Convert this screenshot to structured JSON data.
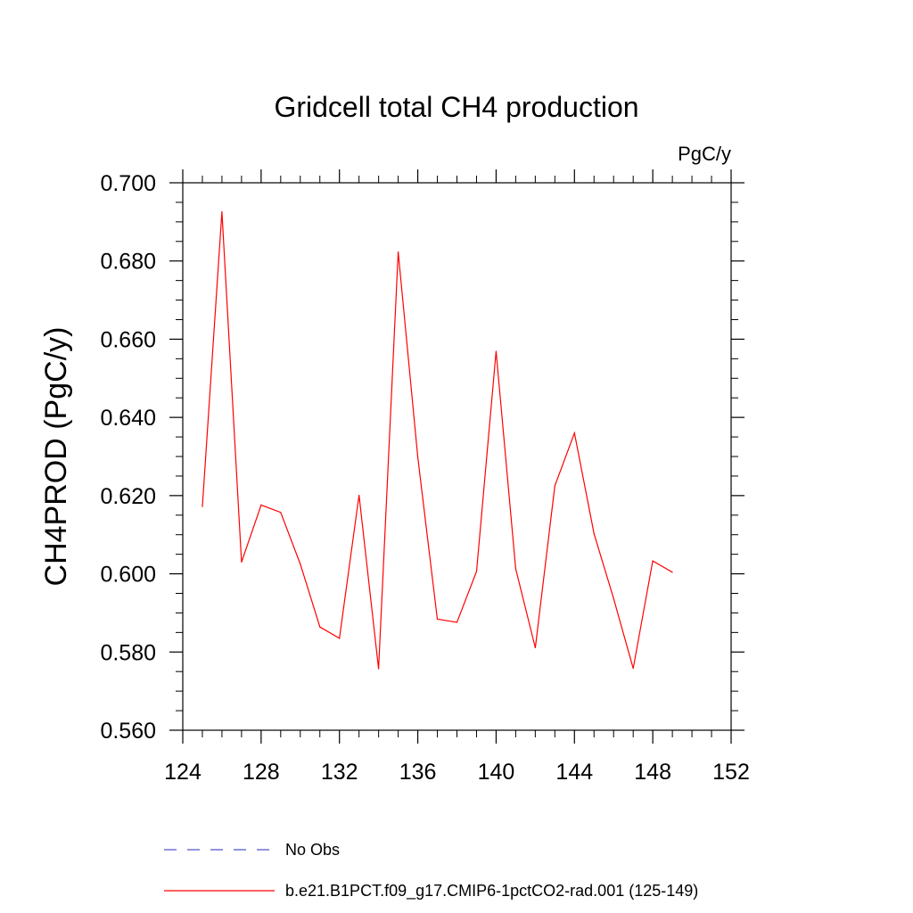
{
  "chart_data": {
    "type": "line",
    "title": "Gridcell total CH4 production",
    "units_label": "PgC/y",
    "xlabel": "",
    "ylabel": "CH4PROD  (PgC/y)",
    "xlim": [
      124,
      152
    ],
    "ylim": [
      0.56,
      0.7
    ],
    "x_ticks": [
      124,
      128,
      132,
      136,
      140,
      144,
      148,
      152
    ],
    "x_tick_labels": [
      "124",
      "128",
      "132",
      "136",
      "140",
      "144",
      "148",
      "152"
    ],
    "y_ticks": [
      0.56,
      0.58,
      0.6,
      0.62,
      0.64,
      0.66,
      0.68,
      0.7
    ],
    "y_tick_labels": [
      "0.560",
      "0.580",
      "0.600",
      "0.620",
      "0.640",
      "0.660",
      "0.680",
      "0.700"
    ],
    "grid": false,
    "legend_position": "bottom",
    "series": [
      {
        "name": "No Obs",
        "color": "#5555cc",
        "dash": true,
        "x": [],
        "y": []
      },
      {
        "name": "b.e21.B1PCT.f09_g17.CMIP6-1pctCO2-rad.001 (125-149)",
        "color": "#ff0000",
        "dash": false,
        "x": [
          125,
          126,
          127,
          128,
          129,
          130,
          131,
          132,
          133,
          134,
          135,
          136,
          137,
          138,
          139,
          140,
          141,
          142,
          143,
          144,
          145,
          146,
          147,
          148,
          149
        ],
        "y": [
          0.6172,
          0.6926,
          0.603,
          0.6176,
          0.6157,
          0.6025,
          0.5864,
          0.5835,
          0.6201,
          0.5757,
          0.6823,
          0.6298,
          0.5884,
          0.5876,
          0.6006,
          0.6569,
          0.6013,
          0.5811,
          0.6225,
          0.636,
          0.6102,
          0.5937,
          0.5758,
          0.6033,
          0.6004
        ]
      }
    ]
  }
}
